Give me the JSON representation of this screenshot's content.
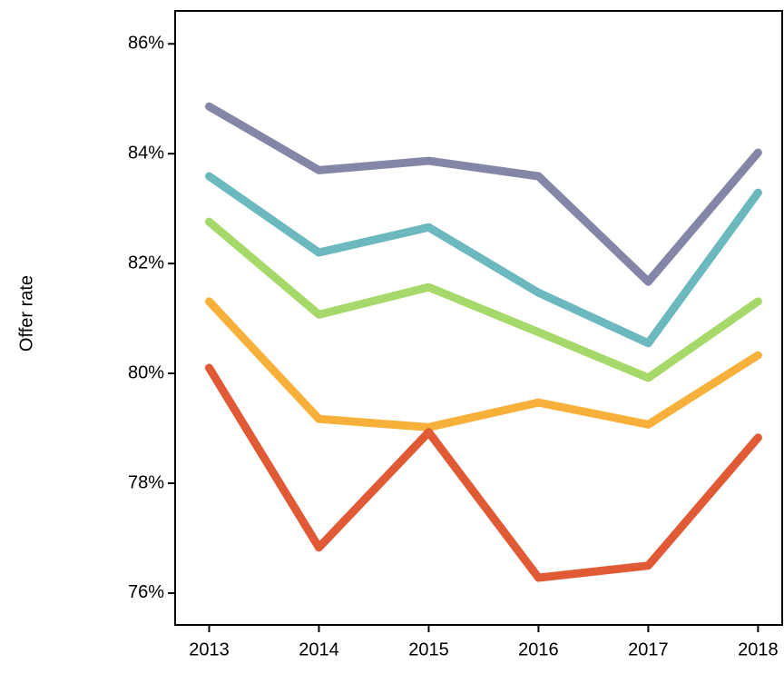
{
  "chart_data": {
    "type": "line",
    "y_label": "Offer rate",
    "x": [
      2013,
      2014,
      2015,
      2016,
      2017,
      2018
    ],
    "xlim": [
      2012.69,
      2018.22
    ],
    "xticks": [
      2013,
      2014,
      2015,
      2016,
      2017,
      2018
    ],
    "ylim": [
      75.42,
      86.6
    ],
    "yticks": [
      {
        "value": 76,
        "label": "76%"
      },
      {
        "value": 78,
        "label": "78%"
      },
      {
        "value": 80,
        "label": "80%"
      },
      {
        "value": 82,
        "label": "82%"
      },
      {
        "value": 84,
        "label": "84%"
      },
      {
        "value": 86,
        "label": "86%"
      }
    ],
    "series": [
      {
        "color": "#8486a8",
        "values": [
          84.86,
          83.7,
          83.87,
          83.59,
          81.67,
          84.02
        ]
      },
      {
        "color": "#6cb8bf",
        "values": [
          83.59,
          82.2,
          82.66,
          81.47,
          80.55,
          83.29
        ]
      },
      {
        "color": "#a6d96a",
        "values": [
          82.76,
          81.07,
          81.57,
          80.75,
          79.92,
          81.31
        ]
      },
      {
        "color": "#f7b03a",
        "values": [
          81.31,
          79.17,
          79.02,
          79.47,
          79.07,
          80.33
        ]
      },
      {
        "color": "#e05a35",
        "values": [
          80.1,
          76.83,
          78.93,
          76.28,
          76.5,
          78.83
        ]
      }
    ]
  }
}
